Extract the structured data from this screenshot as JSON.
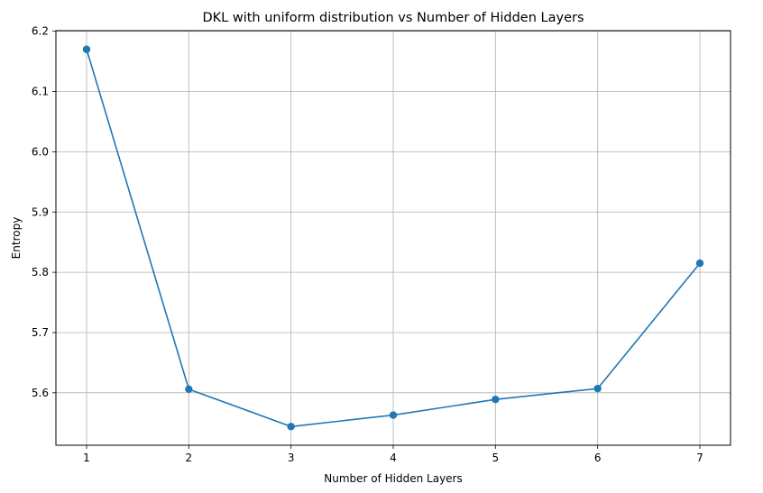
{
  "chart_data": {
    "type": "line",
    "title": "DKL with uniform distribution vs Number of Hidden Layers",
    "xlabel": "Number of Hidden Layers",
    "ylabel": "Entropy",
    "x": [
      1,
      2,
      3,
      4,
      5,
      6,
      7
    ],
    "series": [
      {
        "values": [
          6.17,
          5.606,
          5.544,
          5.563,
          5.589,
          5.607,
          5.815
        ],
        "color": "#1f77b4",
        "marker": "circle"
      }
    ],
    "xticks": [
      1,
      2,
      3,
      4,
      5,
      6,
      7
    ],
    "yticks": [
      5.6,
      5.7,
      5.8,
      5.9,
      6.0,
      6.1,
      6.2
    ],
    "xlim": [
      0.7,
      7.3
    ],
    "ylim": [
      5.513,
      6.201
    ],
    "grid": true,
    "legend": "none"
  }
}
